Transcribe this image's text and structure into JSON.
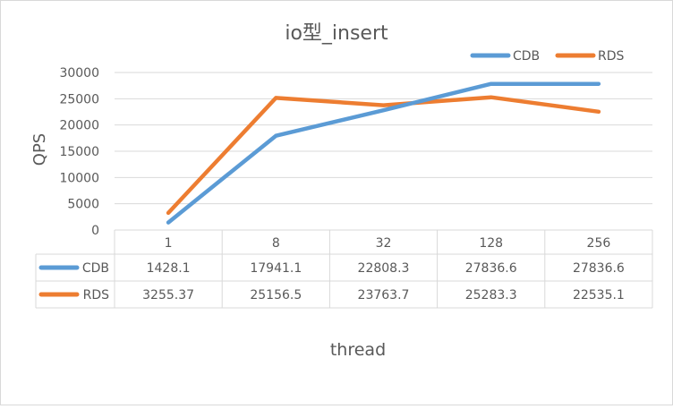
{
  "chart_data": {
    "type": "line",
    "title": "io型_insert",
    "xlabel": "thread",
    "ylabel": "QPS",
    "categories": [
      "1",
      "8",
      "32",
      "128",
      "256"
    ],
    "ylim": [
      0,
      30000
    ],
    "yticks": [
      0,
      5000,
      10000,
      15000,
      20000,
      25000,
      30000
    ],
    "grid": true,
    "legend": "top-right",
    "data_table": true,
    "series": [
      {
        "name": "CDB",
        "color": "#5b9bd5",
        "values": [
          1428.1,
          17941.1,
          22808.3,
          27836.6,
          27836.6
        ],
        "labels": [
          "1428.1",
          "17941.1",
          "22808.3",
          "27836.6",
          "27836.6"
        ]
      },
      {
        "name": "RDS",
        "color": "#ed7d31",
        "values": [
          3255.37,
          25156.5,
          23763.7,
          25283.3,
          22535.1
        ],
        "labels": [
          "3255.37",
          "25156.5",
          "23763.7",
          "25283.3",
          "22535.1"
        ]
      }
    ]
  }
}
